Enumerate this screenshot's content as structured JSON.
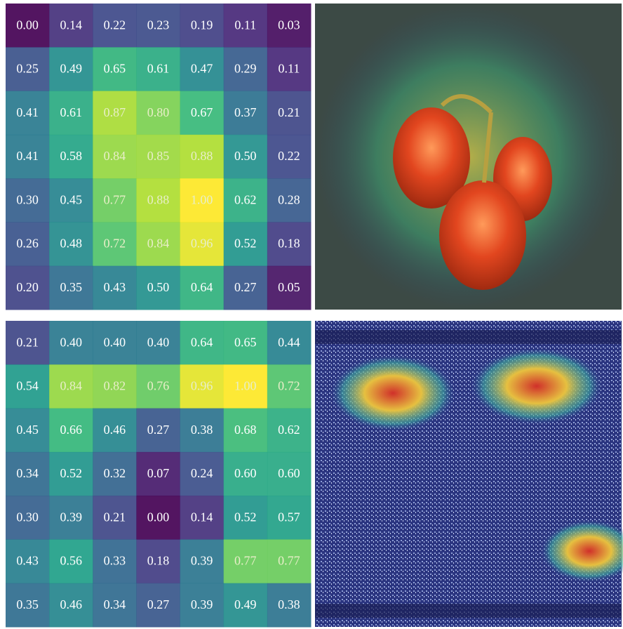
{
  "chart_data": [
    {
      "type": "heatmap",
      "colormap": "viridis",
      "values": [
        [
          0.0,
          0.14,
          0.22,
          0.23,
          0.19,
          0.11,
          0.03
        ],
        [
          0.25,
          0.49,
          0.65,
          0.61,
          0.47,
          0.29,
          0.11
        ],
        [
          0.41,
          0.61,
          0.87,
          0.8,
          0.67,
          0.37,
          0.21
        ],
        [
          0.41,
          0.58,
          0.84,
          0.85,
          0.88,
          0.5,
          0.22
        ],
        [
          0.3,
          0.45,
          0.77,
          0.88,
          1.0,
          0.62,
          0.28
        ],
        [
          0.26,
          0.48,
          0.72,
          0.84,
          0.96,
          0.52,
          0.18
        ],
        [
          0.2,
          0.35,
          0.43,
          0.5,
          0.64,
          0.27,
          0.05
        ]
      ],
      "value_labels": [
        [
          "0.00",
          "0.14",
          "0.22",
          "0.23",
          "0.19",
          "0.11",
          "0.03"
        ],
        [
          "0.25",
          "0.49",
          "0.65",
          "0.61",
          "0.47",
          "0.29",
          "0.11"
        ],
        [
          "0.41",
          "0.61",
          "0.87",
          "0.80",
          "0.67",
          "0.37",
          "0.21"
        ],
        [
          "0.41",
          "0.58",
          "0.84",
          "0.85",
          "0.88",
          "0.50",
          "0.22"
        ],
        [
          "0.30",
          "0.45",
          "0.77",
          "0.88",
          "1.00",
          "0.62",
          "0.28"
        ],
        [
          "0.26",
          "0.48",
          "0.72",
          "0.84",
          "0.96",
          "0.52",
          "0.18"
        ],
        [
          "0.20",
          "0.35",
          "0.43",
          "0.50",
          "0.64",
          "0.27",
          "0.05"
        ]
      ]
    },
    {
      "type": "heatmap",
      "colormap": "viridis",
      "values": [
        [
          0.21,
          0.4,
          0.4,
          0.4,
          0.64,
          0.65,
          0.44
        ],
        [
          0.54,
          0.84,
          0.82,
          0.76,
          0.96,
          1.0,
          0.72
        ],
        [
          0.45,
          0.66,
          0.46,
          0.27,
          0.38,
          0.68,
          0.62
        ],
        [
          0.34,
          0.52,
          0.32,
          0.07,
          0.24,
          0.6,
          0.6
        ],
        [
          0.3,
          0.39,
          0.21,
          0.0,
          0.14,
          0.52,
          0.57
        ],
        [
          0.43,
          0.56,
          0.33,
          0.18,
          0.39,
          0.77,
          0.77
        ],
        [
          0.35,
          0.46,
          0.34,
          0.27,
          0.39,
          0.49,
          0.38
        ]
      ],
      "value_labels": [
        [
          "0.21",
          "0.40",
          "0.40",
          "0.40",
          "0.64",
          "0.65",
          "0.44"
        ],
        [
          "0.54",
          "0.84",
          "0.82",
          "0.76",
          "0.96",
          "1.00",
          "0.72"
        ],
        [
          "0.45",
          "0.66",
          "0.46",
          "0.27",
          "0.38",
          "0.68",
          "0.62"
        ],
        [
          "0.34",
          "0.52",
          "0.32",
          "0.07",
          "0.24",
          "0.60",
          "0.60"
        ],
        [
          "0.30",
          "0.39",
          "0.21",
          "0.00",
          "0.14",
          "0.52",
          "0.57"
        ],
        [
          "0.43",
          "0.56",
          "0.33",
          "0.18",
          "0.39",
          "0.77",
          "0.77"
        ],
        [
          "0.35",
          "0.46",
          "0.34",
          "0.27",
          "0.39",
          "0.49",
          "0.38"
        ]
      ]
    }
  ]
}
